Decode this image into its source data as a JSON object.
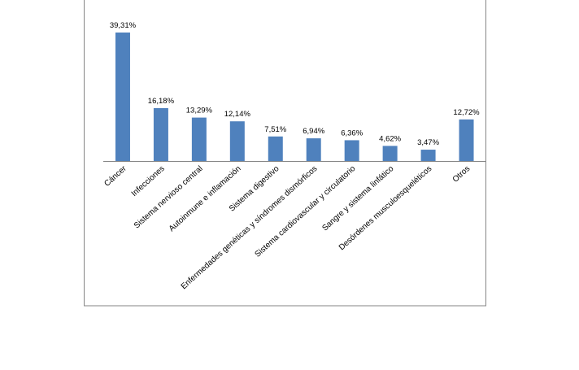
{
  "chart_data": {
    "type": "bar",
    "categories": [
      "Cáncer",
      "Infecciones",
      "Sistema nervioso central",
      "Autoinmune e inflamación",
      "Sistema digestivo",
      "Enfermedades genéticas y síndromes dismórficos",
      "Sistema cardiovascular y circulatorio",
      "Sangre y sistema linfático",
      "Desórdenes musculoesqueléticos",
      "Otros"
    ],
    "values": [
      39.31,
      16.18,
      13.29,
      12.14,
      7.51,
      6.94,
      6.36,
      4.62,
      3.47,
      12.72
    ],
    "value_labels": [
      "39,31%",
      "16,18%",
      "13,29%",
      "12,14%",
      "7,51%",
      "6,94%",
      "6,36%",
      "4,62%",
      "3,47%",
      "12,72%"
    ],
    "color": "#4f81bd"
  }
}
